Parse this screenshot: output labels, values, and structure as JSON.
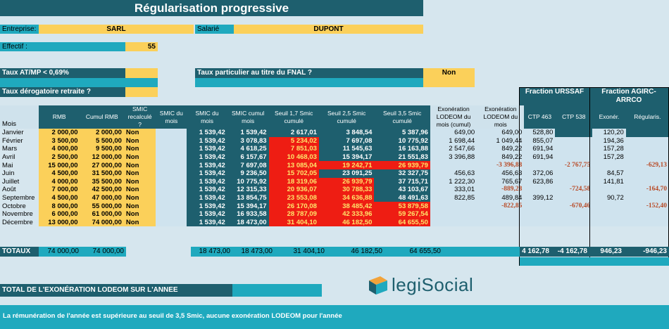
{
  "title": "Régularisation progressive",
  "entreprise": {
    "label": "Entreprise:",
    "value": "SARL"
  },
  "salarie": {
    "label": "Salarié",
    "value": "DUPONT"
  },
  "effectif": {
    "label": "Effectif :",
    "value": "55"
  },
  "taux_atmp": {
    "label": "Taux AT/MP < 0,69%"
  },
  "taux_fnal": {
    "label": "Taux particulier au titre du FNAL ?",
    "value": "Non"
  },
  "taux_derog": {
    "label": "Taux dérogatoire retraite ?"
  },
  "fractions": {
    "urssaf": "Fraction URSSAF",
    "agirc": "Fraction AGIRC-ARRCO"
  },
  "headers": {
    "mois": "Mois",
    "rmb": "RMB",
    "cumul_rmb": "Cumul RMB",
    "smic_recalc": "SMIC recalculé ?",
    "smic_du_mois": "SMIC du mois",
    "smic_du_mois2": "SMIC du mois",
    "smic_cumul": "SMIC cumul mois",
    "s17": "Seuil 1,7 Smic cumulé",
    "s25": "Seuil 2,5 Smic cumulé",
    "s35": "Seuil 3,5 Smic cumulé",
    "exo_cumul": "Exonération LODEOM du mois (cumul)",
    "exo_mois": "Exonération LODEOM du mois",
    "ctp463": "CTP 463",
    "ctp538": "CTP 538",
    "exoner": "Exonér.",
    "regularis": "Régularis."
  },
  "rows": [
    {
      "mois": "Janvier",
      "rmb": "2 000,00",
      "cumul": "2 000,00",
      "recalc": "Non",
      "smic": "1 539,42",
      "smic_cumul": "1 539,42",
      "s17": "2 617,01",
      "s25": "3 848,54",
      "s35": "5 387,96",
      "exo_cumul": "649,00",
      "exo_mois": "649,00",
      "ctp463": "528,80",
      "ctp538": "",
      "exoner": "120,20",
      "regul": ""
    },
    {
      "mois": "Février",
      "rmb": "3 500,00",
      "cumul": "5 500,00",
      "recalc": "Non",
      "smic": "1 539,42",
      "smic_cumul": "3 078,83",
      "s17": "5 234,02",
      "s25": "7 697,08",
      "s35": "10 775,92",
      "exo_cumul": "1 698,44",
      "exo_mois": "1 049,44",
      "ctp463": "855,07",
      "ctp538": "",
      "exoner": "194,36",
      "regul": ""
    },
    {
      "mois": "Mars",
      "rmb": "4 000,00",
      "cumul": "9 500,00",
      "recalc": "Non",
      "smic": "1 539,42",
      "smic_cumul": "4 618,25",
      "s17": "7 851,03",
      "s25": "11 545,63",
      "s35": "16 163,88",
      "exo_cumul": "2 547,66",
      "exo_mois": "849,22",
      "ctp463": "691,94",
      "ctp538": "",
      "exoner": "157,28",
      "regul": ""
    },
    {
      "mois": "Avril",
      "rmb": "2 500,00",
      "cumul": "12 000,00",
      "recalc": "Non",
      "smic": "1 539,42",
      "smic_cumul": "6 157,67",
      "s17": "10 468,03",
      "s25": "15 394,17",
      "s35": "21 551,83",
      "exo_cumul": "3 396,88",
      "exo_mois": "849,22",
      "ctp463": "691,94",
      "ctp538": "",
      "exoner": "157,28",
      "regul": ""
    },
    {
      "mois": "Mai",
      "rmb": "15 000,00",
      "cumul": "27 000,00",
      "recalc": "Non",
      "smic": "1 539,42",
      "smic_cumul": "7 697,08",
      "s17": "13 085,04",
      "s25": "19 242,71",
      "s35": "26 939,79",
      "exo_cumul": "",
      "exo_mois": "-3 396,88",
      "ctp463": "",
      "ctp538": "-2 767,75",
      "exoner": "",
      "regul": "-629,13"
    },
    {
      "mois": "Juin",
      "rmb": "4 500,00",
      "cumul": "31 500,00",
      "recalc": "Non",
      "smic": "1 539,42",
      "smic_cumul": "9 236,50",
      "s17": "15 702,05",
      "s25": "23 091,25",
      "s35": "32 327,75",
      "exo_cumul": "456,63",
      "exo_mois": "456,63",
      "ctp463": "372,06",
      "ctp538": "",
      "exoner": "84,57",
      "regul": ""
    },
    {
      "mois": "Juillet",
      "rmb": "4 000,00",
      "cumul": "35 500,00",
      "recalc": "Non",
      "smic": "1 539,42",
      "smic_cumul": "10 775,92",
      "s17": "18 319,06",
      "s25": "26 939,79",
      "s35": "37 715,71",
      "exo_cumul": "1 222,30",
      "exo_mois": "765,67",
      "ctp463": "623,86",
      "ctp538": "",
      "exoner": "141,81",
      "regul": ""
    },
    {
      "mois": "Août",
      "rmb": "7 000,00",
      "cumul": "42 500,00",
      "recalc": "Non",
      "smic": "1 539,42",
      "smic_cumul": "12 315,33",
      "s17": "20 936,07",
      "s25": "30 788,33",
      "s35": "43 103,67",
      "exo_cumul": "333,01",
      "exo_mois": "-889,28",
      "ctp463": "",
      "ctp538": "-724,58",
      "exoner": "",
      "regul": "-164,70"
    },
    {
      "mois": "Septembre",
      "rmb": "4 500,00",
      "cumul": "47 000,00",
      "recalc": "Non",
      "smic": "1 539,42",
      "smic_cumul": "13 854,75",
      "s17": "23 553,08",
      "s25": "34 636,88",
      "s35": "48 491,63",
      "exo_cumul": "822,85",
      "exo_mois": "489,84",
      "ctp463": "399,12",
      "ctp538": "",
      "exoner": "90,72",
      "regul": ""
    },
    {
      "mois": "Octobre",
      "rmb": "8 000,00",
      "cumul": "55 000,00",
      "recalc": "Non",
      "smic": "1 539,42",
      "smic_cumul": "15 394,17",
      "s17": "26 170,08",
      "s25": "38 485,42",
      "s35": "53 879,58",
      "exo_cumul": "",
      "exo_mois": "-822,85",
      "ctp463": "",
      "ctp538": "-670,46",
      "exoner": "",
      "regul": "-152,40"
    },
    {
      "mois": "Novembre",
      "rmb": "6 000,00",
      "cumul": "61 000,00",
      "recalc": "Non",
      "smic": "1 539,42",
      "smic_cumul": "16 933,58",
      "s17": "28 787,09",
      "s25": "42 333,96",
      "s35": "59 267,54",
      "exo_cumul": "",
      "exo_mois": "",
      "ctp463": "",
      "ctp538": "",
      "exoner": "",
      "regul": ""
    },
    {
      "mois": "Décembre",
      "rmb": "13 000,00",
      "cumul": "74 000,00",
      "recalc": "Non",
      "smic": "1 539,42",
      "smic_cumul": "18 473,00",
      "s17": "31 404,10",
      "s25": "46 182,50",
      "s35": "64 655,50",
      "exo_cumul": "",
      "exo_mois": "",
      "ctp463": "",
      "ctp538": "",
      "exoner": "",
      "regul": ""
    }
  ],
  "red": {
    "s17": [
      false,
      true,
      true,
      true,
      true,
      true,
      true,
      true,
      true,
      true,
      true,
      true
    ],
    "s25": [
      false,
      false,
      false,
      false,
      true,
      false,
      true,
      true,
      true,
      true,
      true,
      true
    ],
    "s35": [
      false,
      false,
      false,
      false,
      true,
      false,
      false,
      false,
      false,
      true,
      true,
      true
    ]
  },
  "totaux": {
    "label": "TOTAUX",
    "rmb": "74 000,00",
    "cumul": "74 000,00",
    "smic": "18 473,00",
    "smic_cumul": "18 473,00",
    "s17": "31 404,10",
    "s25": "46 182,50",
    "s35": "64 655,50",
    "ctp463": "4 162,78",
    "ctp538": "-4 162,78",
    "exoner": "946,23",
    "regul": "-946,23"
  },
  "total_exo_label": "TOTAL DE L'EXONÉRATION LODEOM SUR L'ANNEE",
  "logo": "legiSocial",
  "footer": "La rémunération de l'année est supérieure au seuil de 3,5 Smic, aucune exonération LODEOM pour l'année",
  "colors": {
    "dark": "#1e5f6e",
    "teal": "#1fa9be",
    "yellow": "#fbd05a",
    "red": "#ee1d13"
  }
}
